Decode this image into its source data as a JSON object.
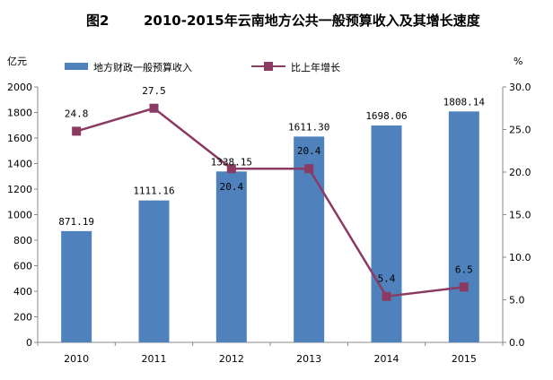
{
  "chart_data": {
    "type": "bar+line",
    "title_prefix": "图2",
    "title": "2010-2015年云南地方公共一般预算收入及其增长速度",
    "categories": [
      "2010",
      "2011",
      "2012",
      "2013",
      "2014",
      "2015"
    ],
    "y_left_unit": "亿元",
    "y_right_unit": "%",
    "y_left_range": [
      0,
      2000
    ],
    "y_left_ticks": [
      "0",
      "200",
      "400",
      "600",
      "800",
      "1000",
      "1200",
      "1400",
      "1600",
      "1800",
      "2000"
    ],
    "y_right_range": [
      0,
      30
    ],
    "y_right_ticks": [
      "0.0",
      "5.0",
      "10.0",
      "15.0",
      "20.0",
      "25.0",
      "30.0"
    ],
    "series": [
      {
        "name": "地方财政一般预算收入",
        "kind": "bar",
        "axis": "left",
        "color": "#4f81bd",
        "values": [
          871.19,
          1111.16,
          1338.15,
          1611.3,
          1698.06,
          1808.14
        ],
        "labels": [
          "871.19",
          "1111.16",
          "1338.15",
          "1611.30",
          "1698.06",
          "1808.14"
        ]
      },
      {
        "name": "比上年增长",
        "kind": "line",
        "axis": "right",
        "color": "#8b3a62",
        "values": [
          24.8,
          27.5,
          20.4,
          20.4,
          5.4,
          6.5
        ],
        "labels": [
          "24.8",
          "27.5",
          "20.4",
          "20.4",
          "5.4",
          "6.5"
        ]
      }
    ],
    "grid": false,
    "legend_position": "top"
  }
}
